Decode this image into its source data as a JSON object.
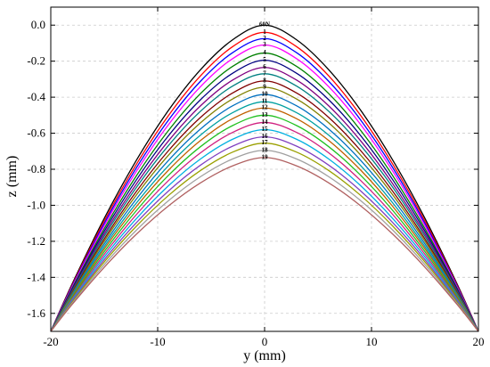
{
  "chart_data": {
    "type": "line",
    "title": "",
    "xlabel": "y (mm)",
    "ylabel": "z (mm)",
    "xlim": [
      -20,
      20
    ],
    "ylim": [
      -1.7,
      0.1
    ],
    "grid": true,
    "x_ticks": [
      -20,
      -10,
      0,
      10,
      20
    ],
    "y_ticks": [
      0.0,
      -0.2,
      -0.4,
      -0.6,
      -0.8,
      -1.0,
      -1.2,
      -1.4,
      -1.6
    ],
    "x_tick_labels": [
      "-20",
      "-10",
      "0",
      "10",
      "20"
    ],
    "y_tick_labels": [
      "0.0",
      "-0.2",
      "-0.4",
      "-0.6",
      "-0.8",
      "-1.0",
      "-1.2",
      "-1.4",
      "-1.6"
    ],
    "x": [
      -20,
      -18,
      -15,
      -12,
      -9,
      -6,
      -3,
      0,
      3,
      6,
      9,
      12,
      15,
      18,
      20
    ],
    "end_value": -1.7,
    "series": [
      {
        "name": "60N",
        "color": "#000000",
        "peak": 0.0
      },
      {
        "name": "1",
        "color": "#ff0000",
        "peak": -0.04
      },
      {
        "name": "2",
        "color": "#0000ff",
        "peak": -0.075
      },
      {
        "name": "3",
        "color": "#ff00ff",
        "peak": -0.11
      },
      {
        "name": "4",
        "color": "#008000",
        "peak": -0.155
      },
      {
        "name": "5",
        "color": "#000080",
        "peak": -0.195
      },
      {
        "name": "6",
        "color": "#800080",
        "peak": -0.235
      },
      {
        "name": "7",
        "color": "#008080",
        "peak": -0.27
      },
      {
        "name": "8",
        "color": "#800000",
        "peak": -0.31
      },
      {
        "name": "9",
        "color": "#808000",
        "peak": -0.345
      },
      {
        "name": "10",
        "color": "#0070c0",
        "peak": -0.385
      },
      {
        "name": "11",
        "color": "#00a0a0",
        "peak": -0.425
      },
      {
        "name": "12",
        "color": "#c06000",
        "peak": -0.46
      },
      {
        "name": "13",
        "color": "#20c020",
        "peak": -0.5
      },
      {
        "name": "14",
        "color": "#d02080",
        "peak": -0.54
      },
      {
        "name": "15",
        "color": "#00b0e0",
        "peak": -0.58
      },
      {
        "name": "16",
        "color": "#8040c0",
        "peak": -0.62
      },
      {
        "name": "17",
        "color": "#9aa000",
        "peak": -0.655
      },
      {
        "name": "18",
        "color": "#a0a0a0",
        "peak": -0.695
      },
      {
        "name": "19",
        "color": "#b06060",
        "peak": -0.735
      }
    ]
  }
}
